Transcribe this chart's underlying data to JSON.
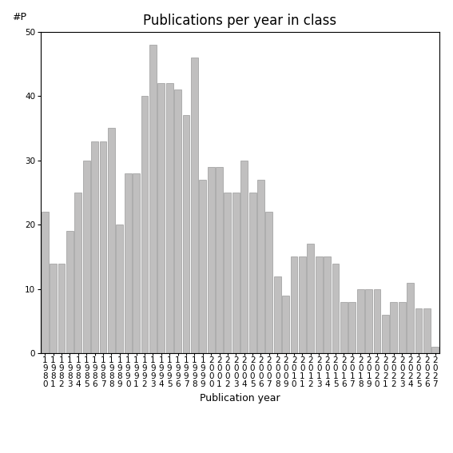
{
  "title": "Publications per year in class",
  "xlabel": "Publication year",
  "ylabel": "#P",
  "years": [
    1980,
    1981,
    1982,
    1983,
    1984,
    1985,
    1986,
    1987,
    1988,
    1989,
    1990,
    1991,
    1992,
    1993,
    1994,
    1995,
    1996,
    1997,
    1998,
    1999,
    2000,
    2001,
    2002,
    2003,
    2004,
    2005,
    2006,
    2007,
    2008,
    2009,
    2010,
    2011,
    2012,
    2013,
    2014,
    2015,
    2016,
    2017,
    2018,
    2019,
    2020,
    2021,
    2022,
    2023,
    2024,
    2025,
    2026,
    2027
  ],
  "values": [
    22,
    14,
    14,
    19,
    25,
    30,
    33,
    33,
    35,
    20,
    28,
    28,
    40,
    48,
    42,
    42,
    41,
    37,
    46,
    27,
    29,
    29,
    25,
    25,
    30,
    25,
    27,
    22,
    12,
    9,
    15,
    15,
    17,
    15,
    15,
    14,
    8,
    8,
    10,
    10,
    10,
    6,
    8,
    8,
    11,
    7,
    7,
    1
  ],
  "bar_color": "#c0bfbf",
  "bar_edgecolor": "#888888",
  "ylim": [
    0,
    50
  ],
  "yticks": [
    0,
    10,
    20,
    30,
    40,
    50
  ],
  "background_color": "#ffffff",
  "title_fontsize": 12,
  "label_fontsize": 9,
  "tick_fontsize": 7.5
}
